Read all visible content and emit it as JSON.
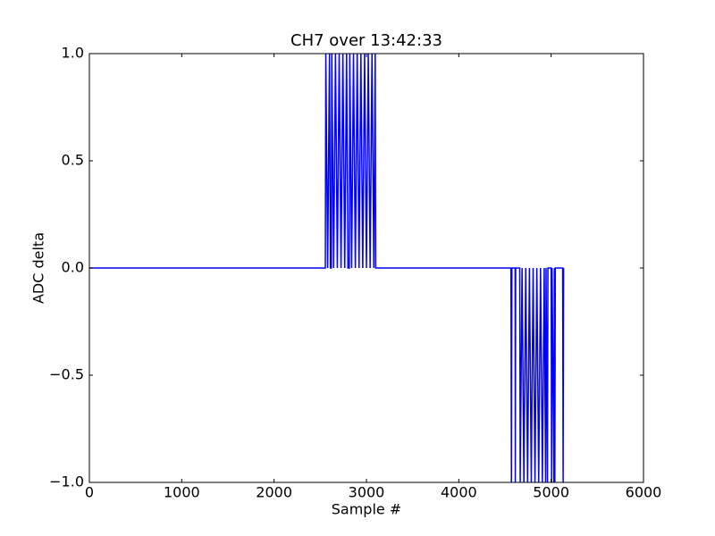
{
  "chart_data": {
    "type": "line",
    "title": "CH7 over 13:42:33",
    "xlabel": "Sample #",
    "ylabel": "ADC delta",
    "color": "#0000ff",
    "x": [
      0,
      2555,
      2560,
      2580,
      2600,
      2610,
      2620,
      2625,
      2645,
      2665,
      2685,
      2705,
      2725,
      2745,
      2765,
      2785,
      2800,
      2815,
      2820,
      2840,
      2860,
      2880,
      2900,
      2920,
      2940,
      2960,
      2980,
      3000,
      3020,
      3040,
      3060,
      3080,
      3095,
      3100,
      4565,
      4570,
      4575,
      4610,
      4612,
      4616,
      4660,
      4665,
      4685,
      4705,
      4725,
      4745,
      4765,
      4785,
      4805,
      4825,
      4845,
      4865,
      4885,
      4905,
      4925,
      4940,
      4945,
      4960,
      4965,
      5000,
      5005,
      5010,
      5030,
      5035,
      5040,
      5045,
      5125,
      5130,
      5135
    ],
    "values": [
      0,
      0,
      1,
      0,
      1,
      0,
      0,
      1,
      0,
      1,
      0,
      1,
      0,
      1,
      0,
      1,
      0,
      0,
      1,
      0,
      1,
      0,
      1,
      0,
      1,
      0,
      1,
      0,
      1,
      0,
      1,
      0,
      1,
      0,
      0,
      -1,
      0,
      0,
      -1,
      0,
      0,
      -1,
      0,
      -1,
      0,
      -1,
      0,
      -1,
      0,
      -1,
      0,
      -1,
      0,
      -1,
      0,
      -1,
      0,
      -1,
      0,
      0,
      -1,
      0,
      -1,
      0,
      -1,
      0,
      0,
      -1,
      0
    ],
    "xlim": [
      0,
      6000
    ],
    "xticks": [
      0,
      1000,
      2000,
      3000,
      4000,
      5000,
      6000
    ],
    "ylim": [
      -1,
      1
    ],
    "yticks": [
      {
        "value": -1,
        "label": "−1.0"
      },
      {
        "value": -0.5,
        "label": "−0.5"
      },
      {
        "value": 0,
        "label": "0.0"
      },
      {
        "value": 0.5,
        "label": "0.5"
      },
      {
        "value": 1,
        "label": "1.0"
      }
    ]
  }
}
